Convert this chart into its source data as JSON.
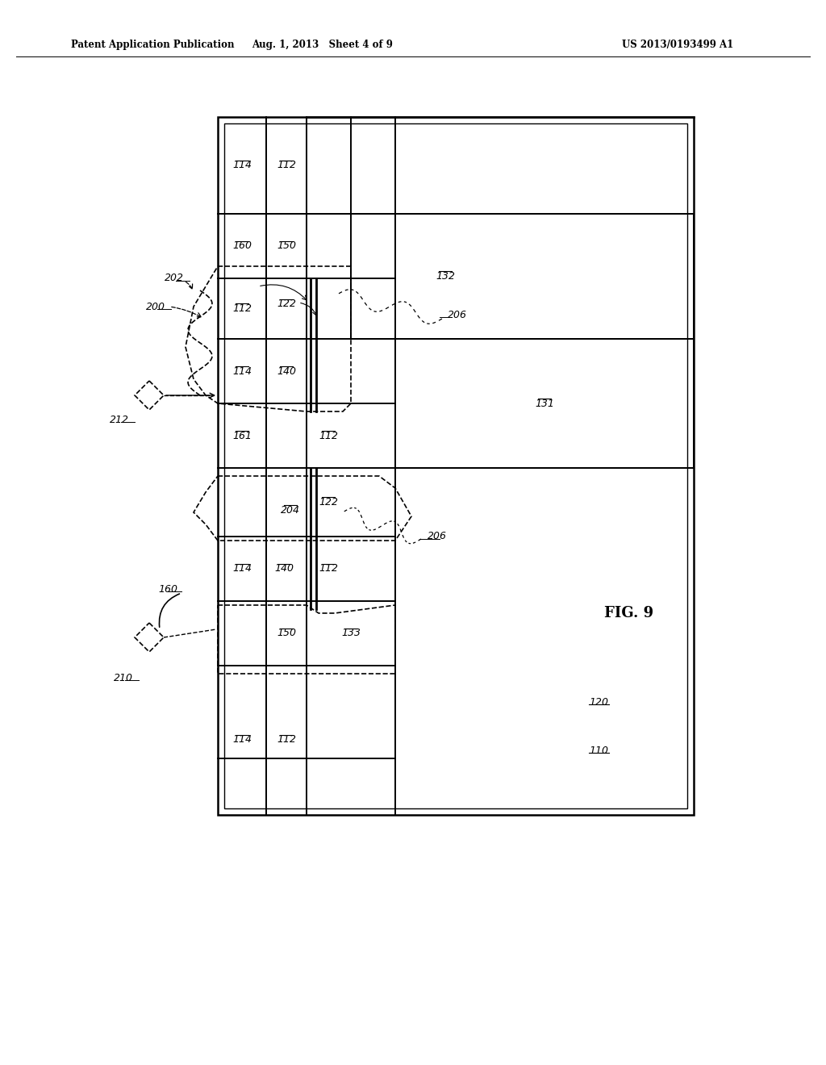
{
  "title_left": "Patent Application Publication",
  "title_mid": "Aug. 1, 2013   Sheet 4 of 9",
  "title_right": "US 2013/0193499 A1",
  "fig_label": "FIG. 9",
  "bg_color": "#ffffff",
  "lc": "#000000"
}
